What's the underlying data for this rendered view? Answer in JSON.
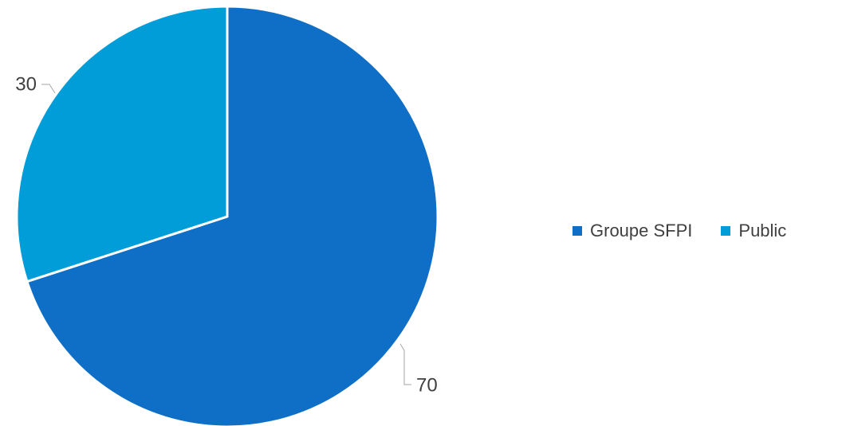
{
  "chart_data": {
    "type": "pie",
    "categories": [
      "Groupe SFPI",
      "Public"
    ],
    "values": [
      70,
      30
    ],
    "data_labels": [
      "70",
      "30"
    ],
    "colors": [
      "#0F6FC6",
      "#009DD9"
    ],
    "start_angle_deg": 0,
    "direction": "clockwise",
    "legend_position": "right",
    "title": ""
  }
}
